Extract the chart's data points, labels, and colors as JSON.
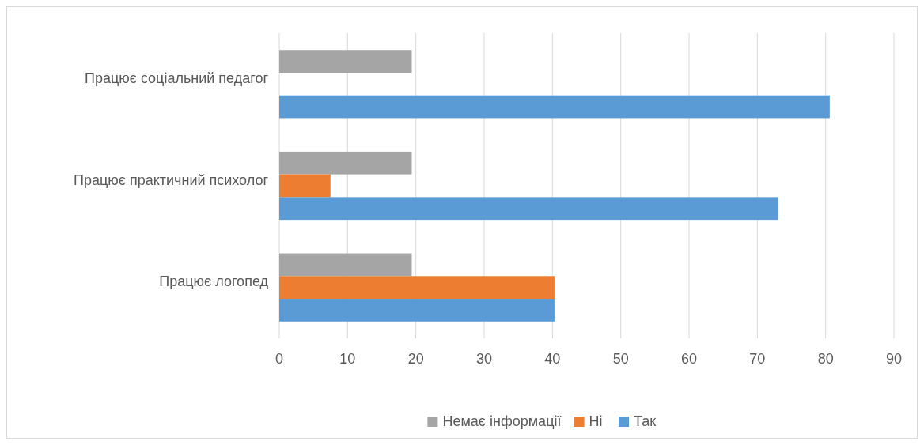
{
  "chart_data": {
    "type": "bar",
    "orientation": "horizontal",
    "categories": [
      "Працює соціальний педагог",
      "Працює практичний психолог",
      "Працює логопед"
    ],
    "series": [
      {
        "name": "Немає інформації",
        "color": "#a5a5a5",
        "values": [
          19.4,
          19.4,
          19.4
        ]
      },
      {
        "name": "Ні",
        "color": "#ed7d31",
        "values": [
          0,
          7.5,
          40.3
        ]
      },
      {
        "name": "Так",
        "color": "#5b9bd5",
        "values": [
          80.6,
          73.1,
          40.3
        ]
      }
    ],
    "xlim": [
      0,
      90
    ],
    "xticks": [
      0,
      10,
      20,
      30,
      40,
      50,
      60,
      70,
      80,
      90
    ],
    "grid": "x",
    "legend": "bottom"
  }
}
